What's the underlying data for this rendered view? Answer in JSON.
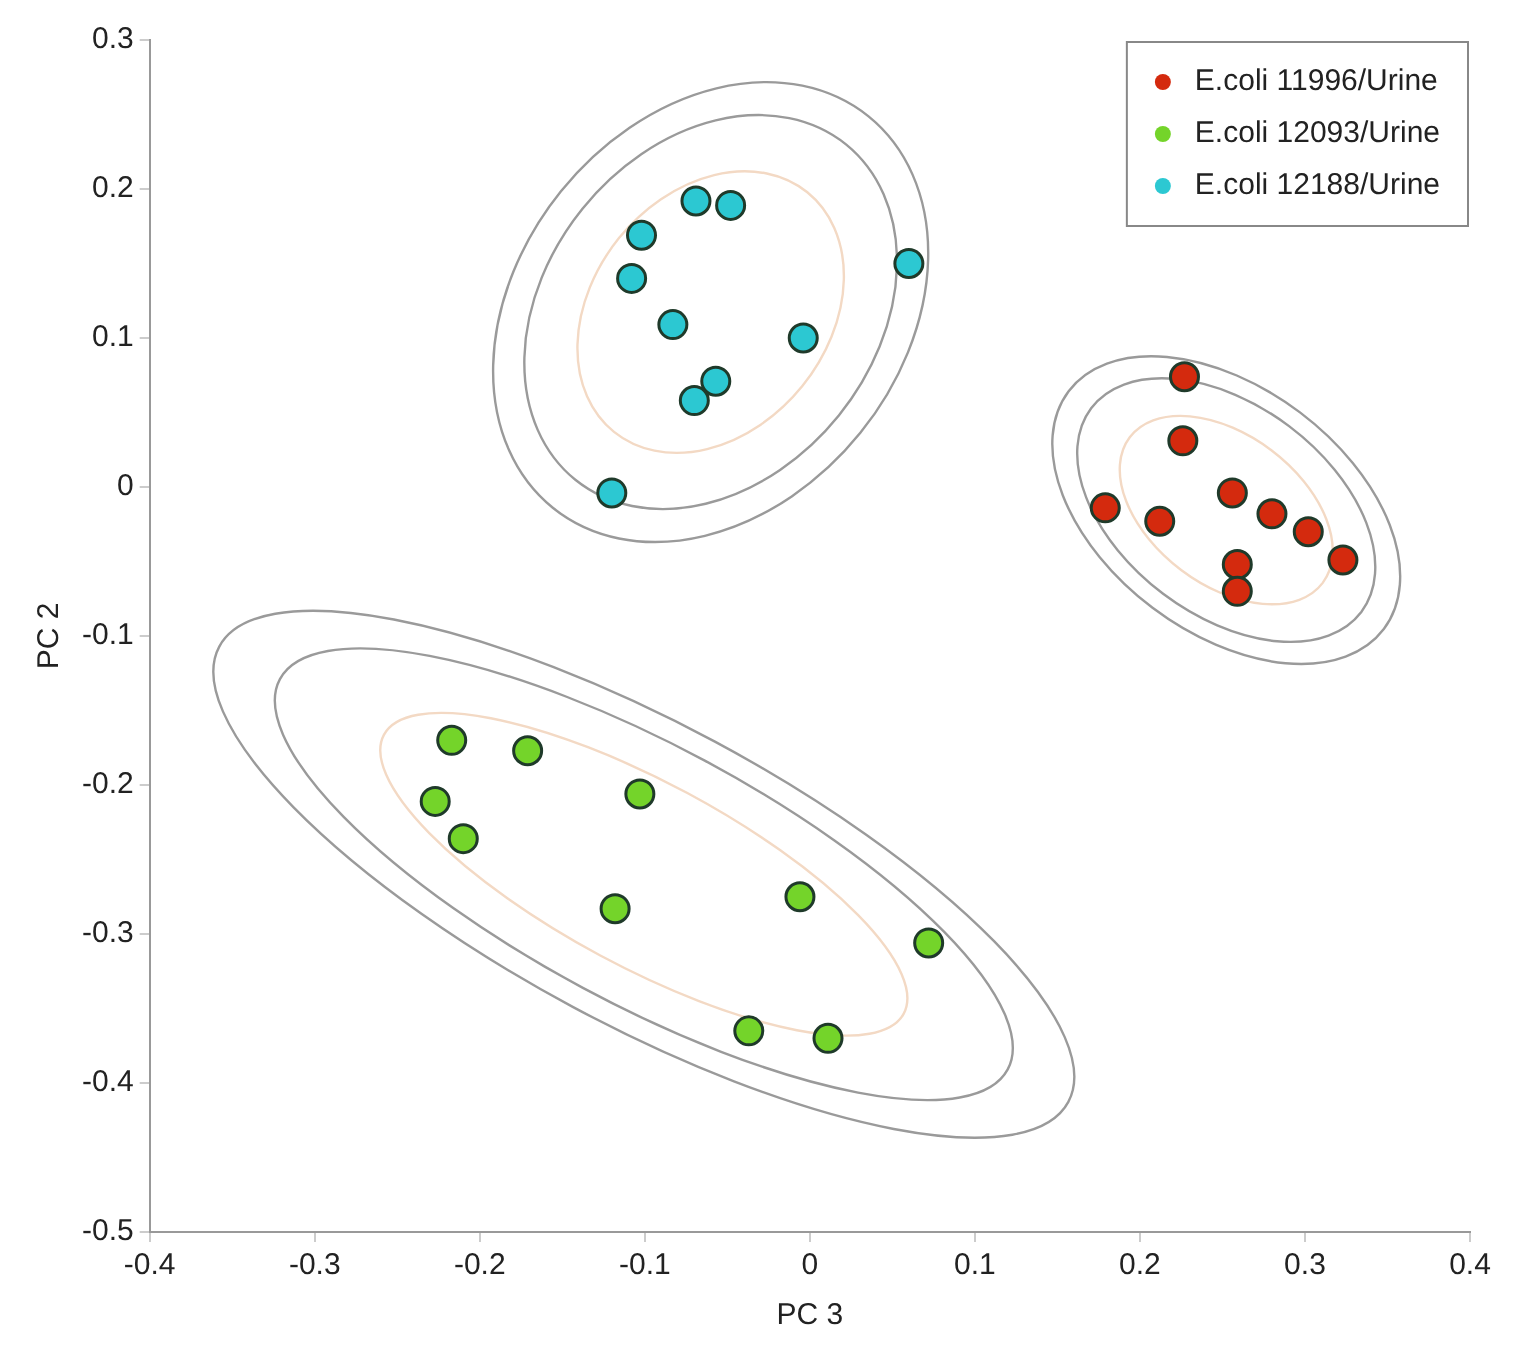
{
  "chart_data": {
    "type": "scatter",
    "xlabel": "PC 3",
    "ylabel": "PC 2",
    "xlim": [
      -0.4,
      0.4
    ],
    "ylim": [
      -0.5,
      0.3
    ],
    "xticks": [
      -0.4,
      -0.3,
      -0.2,
      -0.1,
      0,
      0.1,
      0.2,
      0.3,
      0.4
    ],
    "yticks": [
      -0.5,
      -0.4,
      -0.3,
      -0.2,
      -0.1,
      0,
      0.1,
      0.2,
      0.3
    ],
    "grid": false,
    "legend": "top right",
    "marker": "circle",
    "series": [
      {
        "name": "E.coli 11996/Urine",
        "color": "#d42a0e",
        "x": [
          0.227,
          0.226,
          0.179,
          0.212,
          0.256,
          0.28,
          0.302,
          0.323,
          0.259,
          0.259
        ],
        "values": [
          0.074,
          0.031,
          -0.014,
          -0.023,
          -0.004,
          -0.018,
          -0.03,
          -0.049,
          -0.052,
          -0.07
        ]
      },
      {
        "name": "E.coli 12093/Urine",
        "color": "#74d42a",
        "x": [
          -0.217,
          -0.171,
          -0.227,
          -0.21,
          -0.103,
          -0.118,
          -0.006,
          0.072,
          -0.037,
          0.011
        ],
        "values": [
          -0.17,
          -0.177,
          -0.211,
          -0.236,
          -0.206,
          -0.283,
          -0.275,
          -0.306,
          -0.365,
          -0.37
        ]
      },
      {
        "name": "E.coli 12188/Urine",
        "color": "#2cc8d2",
        "x": [
          -0.069,
          -0.048,
          -0.102,
          -0.108,
          0.06,
          -0.083,
          -0.004,
          -0.057,
          -0.07,
          -0.12
        ],
        "values": [
          0.192,
          0.189,
          0.169,
          0.14,
          0.15,
          0.109,
          0.1,
          0.071,
          0.058,
          -0.004
        ]
      }
    ]
  }
}
